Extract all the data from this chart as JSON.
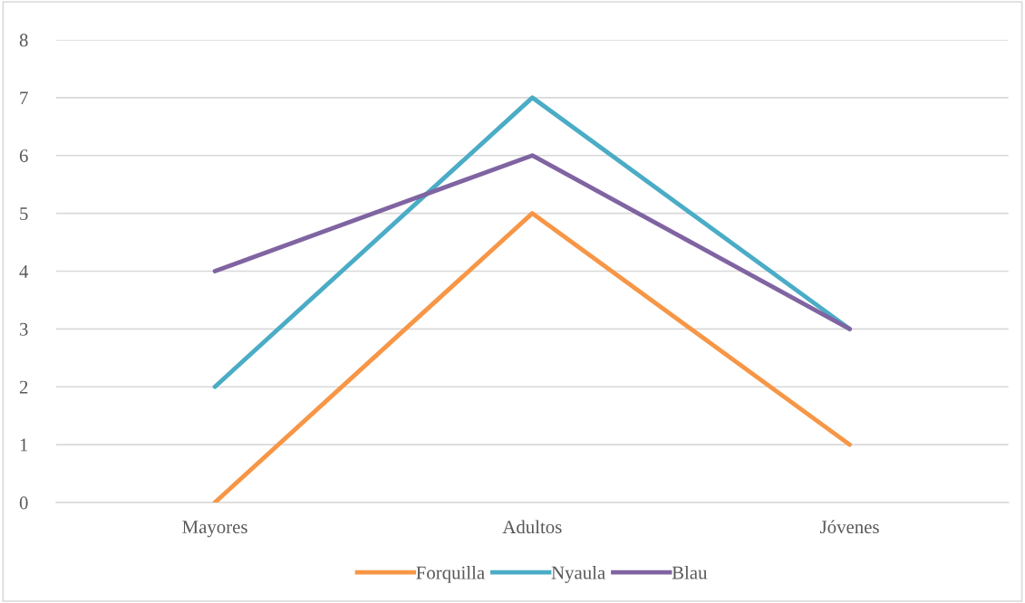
{
  "chart_data": {
    "type": "line",
    "categories": [
      "Mayores",
      "Adultos",
      "Jóvenes"
    ],
    "series": [
      {
        "name": "Forquilla",
        "color": "#f79646",
        "values": [
          0,
          5,
          1
        ]
      },
      {
        "name": "Nyaula",
        "color": "#4bacc6",
        "values": [
          2,
          7,
          3
        ]
      },
      {
        "name": "Blau",
        "color": "#8064a2",
        "values": [
          4,
          6,
          3
        ]
      }
    ],
    "ylim": [
      0,
      8
    ],
    "yticks": [
      0,
      1,
      2,
      3,
      4,
      5,
      6,
      7,
      8
    ],
    "grid": "y",
    "legend": "bottom",
    "marker": "none",
    "line_style": "solid"
  }
}
